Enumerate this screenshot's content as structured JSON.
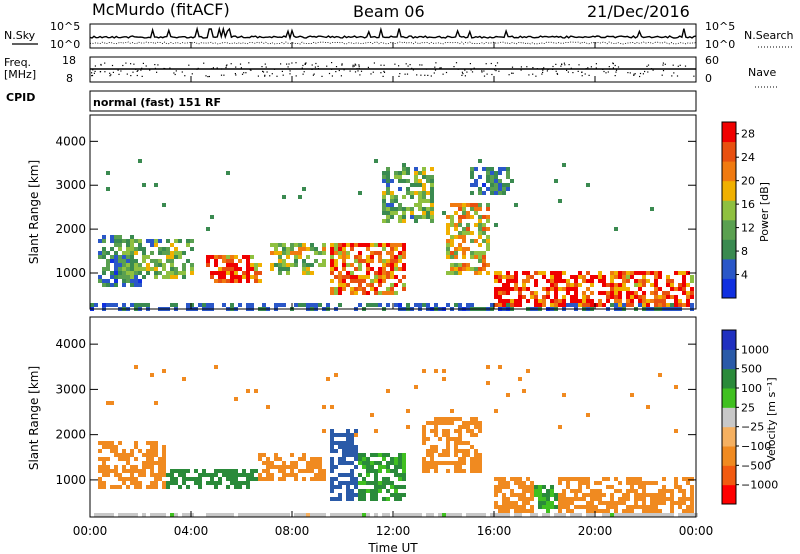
{
  "header": {
    "station": "McMurdo (fitACF)",
    "beam": "Beam 06",
    "date": "21/Dec/2016"
  },
  "top_panel": {
    "left_label": "N.Sky",
    "left_ticks": [
      "10^5",
      "10^0"
    ],
    "right_ticks": [
      "10^5",
      "10^0"
    ],
    "right_label": "N.Search"
  },
  "freq_panel": {
    "left_label_1": "Freq.",
    "left_label_2": "[MHz]",
    "left_ticks": [
      "18",
      "8"
    ],
    "right_ticks": [
      "60",
      "0"
    ],
    "right_label": "Nave"
  },
  "cpid": {
    "label": "CPID",
    "value": "normal (fast) 151 RF"
  },
  "colors": {
    "power": [
      "#1030e0",
      "#2a57c8",
      "#3a8a50",
      "#5aa050",
      "#8fc040",
      "#f0b000",
      "#f07a10",
      "#e85010",
      "#f00000"
    ],
    "velocity": [
      "#ff0000",
      "#f25a10",
      "#f08a20",
      "#f5b060",
      "#c8c8c8",
      "#40c020",
      "#2a8a3a",
      "#2a5aa8",
      "#2030c0"
    ]
  },
  "chart_data": [
    {
      "type": "heatmap",
      "name": "power",
      "xlabel": "",
      "ylabel": "Slant Range [km]",
      "xlim": [
        "00:00",
        "24:00"
      ],
      "ylim": [
        180,
        4600
      ],
      "yticks": [
        "1000",
        "2000",
        "3000",
        "4000"
      ],
      "colorbar": {
        "label": "Power [dB]",
        "ticks": [
          "4",
          "8",
          "12",
          "16",
          "20",
          "24",
          "28"
        ],
        "range": [
          0,
          30
        ]
      },
      "regions": [
        {
          "t0": 0.2,
          "t1": 2.0,
          "r0": 700,
          "r1": 1900,
          "v": 8
        },
        {
          "t0": 1.0,
          "t1": 4.0,
          "r0": 900,
          "r1": 1800,
          "v": 12
        },
        {
          "t0": 4.5,
          "t1": 6.8,
          "r0": 800,
          "r1": 1500,
          "v": 24
        },
        {
          "t0": 7.0,
          "t1": 9.2,
          "r0": 1000,
          "r1": 1700,
          "v": 14
        },
        {
          "t0": 9.5,
          "t1": 12.5,
          "r0": 500,
          "r1": 1700,
          "v": 22
        },
        {
          "t0": 11.5,
          "t1": 13.5,
          "r0": 2200,
          "r1": 3500,
          "v": 12
        },
        {
          "t0": 14.0,
          "t1": 15.8,
          "r0": 1000,
          "r1": 2600,
          "v": 18
        },
        {
          "t0": 16.0,
          "t1": 18.5,
          "r0": 300,
          "r1": 1100,
          "v": 28
        },
        {
          "t0": 18.5,
          "t1": 23.8,
          "r0": 300,
          "r1": 1100,
          "v": 26
        },
        {
          "t0": 15.0,
          "t1": 16.5,
          "r0": 2800,
          "r1": 3500,
          "v": 8
        }
      ]
    },
    {
      "type": "heatmap",
      "name": "velocity",
      "xlabel": "Time UT",
      "ylabel": "Slant Range [km]",
      "xlim": [
        "00:00",
        "24:00"
      ],
      "ylim": [
        180,
        4600
      ],
      "xticks": [
        "00:00",
        "04:00",
        "08:00",
        "12:00",
        "16:00",
        "20:00",
        "00:00"
      ],
      "yticks": [
        "1000",
        "2000",
        "3000",
        "4000"
      ],
      "colorbar": {
        "label": "Velocity [m s⁻¹]",
        "ticks": [
          "1000",
          "500",
          "100",
          "25",
          "−25",
          "−100",
          "−500",
          "−1000"
        ]
      },
      "regions": [
        {
          "t0": 0.2,
          "t1": 3.0,
          "r0": 800,
          "r1": 1900,
          "v": -300
        },
        {
          "t0": 3.0,
          "t1": 6.5,
          "r0": 800,
          "r1": 1300,
          "v": 150
        },
        {
          "t0": 6.5,
          "t1": 9.3,
          "r0": 1000,
          "r1": 1600,
          "v": -250
        },
        {
          "t0": 9.4,
          "t1": 10.5,
          "r0": 600,
          "r1": 2200,
          "v": 700
        },
        {
          "t0": 10.5,
          "t1": 12.5,
          "r0": 600,
          "r1": 1600,
          "v": 120
        },
        {
          "t0": 13.0,
          "t1": 15.5,
          "r0": 1200,
          "r1": 2400,
          "v": -300
        },
        {
          "t0": 16.0,
          "t1": 17.5,
          "r0": 300,
          "r1": 1100,
          "v": -400
        },
        {
          "t0": 17.5,
          "t1": 18.5,
          "r0": 300,
          "r1": 900,
          "v": 100
        },
        {
          "t0": 18.5,
          "t1": 23.8,
          "r0": 300,
          "r1": 1100,
          "v": -200
        },
        {
          "t0": 0.0,
          "t1": 24.0,
          "r0": 180,
          "r1": 320,
          "v": 0
        }
      ]
    }
  ]
}
